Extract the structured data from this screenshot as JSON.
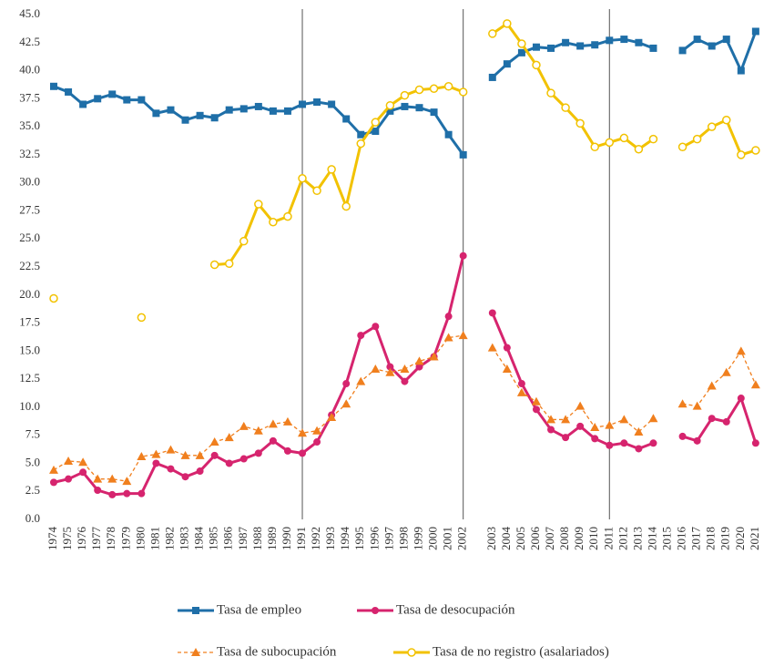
{
  "chart_data": {
    "type": "line",
    "categories": [
      "1974",
      "1975",
      "1976",
      "1977",
      "1978",
      "1979",
      "1980",
      "1981",
      "1982",
      "1983",
      "1984",
      "1985",
      "1986",
      "1987",
      "1988",
      "1989",
      "1990",
      "1991",
      "1992",
      "1993",
      "1994",
      "1995",
      "1996",
      "1997",
      "1998",
      "1999",
      "2000",
      "2001",
      "2002",
      null,
      "2003",
      "2004",
      "2005",
      "2006",
      "2007",
      "2008",
      "2009",
      "2010",
      "2011",
      "2012",
      "2013",
      "2014",
      "2015",
      "2016",
      "2017",
      "2018",
      "2019",
      "2020",
      "2021"
    ],
    "series": [
      {
        "name": "Tasa de empleo",
        "color": "#1f6fa8",
        "marker": "square",
        "dashed": false,
        "values": [
          38.6,
          38.1,
          37.0,
          37.5,
          37.9,
          37.4,
          37.4,
          36.2,
          36.5,
          35.6,
          36.0,
          35.8,
          36.5,
          36.6,
          36.8,
          36.4,
          36.4,
          37.0,
          37.2,
          37.0,
          35.7,
          34.3,
          34.6,
          36.4,
          36.8,
          36.7,
          36.3,
          34.3,
          32.5,
          null,
          39.4,
          40.6,
          41.6,
          42.1,
          42.0,
          42.5,
          42.2,
          42.3,
          42.7,
          42.8,
          42.5,
          42.0,
          null,
          41.8,
          42.8,
          42.2,
          42.8,
          40.0,
          43.5
        ]
      },
      {
        "name": "Tasa de desocupación",
        "color": "#d6246e",
        "marker": "circle",
        "dashed": false,
        "values": [
          3.3,
          3.6,
          4.2,
          2.6,
          2.2,
          2.3,
          2.3,
          5.0,
          4.5,
          3.8,
          4.3,
          5.7,
          5.0,
          5.4,
          5.9,
          7.0,
          6.1,
          5.9,
          6.9,
          9.3,
          12.1,
          16.4,
          17.2,
          13.6,
          12.3,
          13.6,
          14.5,
          18.1,
          23.5,
          null,
          18.4,
          15.3,
          12.1,
          9.8,
          8.0,
          7.3,
          8.3,
          7.2,
          6.6,
          6.8,
          6.3,
          6.8,
          null,
          7.4,
          7.0,
          9.0,
          8.7,
          10.8,
          6.8
        ]
      },
      {
        "name": "Tasa de subocupación",
        "color": "#f07f1e",
        "marker": "triangle",
        "dashed": true,
        "values": [
          4.4,
          5.2,
          5.1,
          3.6,
          3.6,
          3.4,
          5.6,
          5.8,
          6.2,
          5.7,
          5.7,
          6.9,
          7.3,
          8.3,
          7.9,
          8.5,
          8.7,
          7.7,
          7.9,
          9.1,
          10.3,
          12.3,
          13.4,
          13.1,
          13.4,
          14.1,
          14.5,
          16.2,
          16.4,
          null,
          15.3,
          13.4,
          11.3,
          10.5,
          8.9,
          8.9,
          10.1,
          8.2,
          8.4,
          8.9,
          7.8,
          9.0,
          null,
          10.3,
          10.1,
          11.9,
          13.1,
          15.0,
          12.0
        ]
      },
      {
        "name": "Tasa de no registro (asalariados)",
        "color": "#f2c200",
        "marker": "open-circle",
        "dashed": false,
        "values": [
          19.7,
          null,
          null,
          null,
          null,
          null,
          18.0,
          null,
          null,
          null,
          null,
          22.7,
          22.8,
          24.8,
          28.1,
          26.5,
          27.0,
          30.4,
          29.3,
          31.2,
          27.9,
          33.5,
          35.4,
          36.9,
          37.8,
          38.3,
          38.4,
          38.6,
          38.1,
          null,
          43.3,
          44.2,
          42.4,
          40.5,
          38.0,
          36.7,
          35.3,
          33.2,
          33.6,
          34.0,
          33.0,
          33.9,
          null,
          33.2,
          33.9,
          35.0,
          35.6,
          32.5,
          32.9
        ]
      }
    ],
    "vertical_lines": [
      "1991",
      "2002",
      "2011"
    ],
    "ylim": [
      0,
      45
    ],
    "yticks": [
      {
        "value": 0,
        "label": "0.0"
      },
      2.5,
      {
        "value": 5,
        "label": "5.0"
      },
      7.5,
      {
        "value": 10,
        "label": "10.0"
      },
      12.5,
      {
        "value": 15,
        "label": "15.0"
      },
      17.5,
      {
        "value": 20,
        "label": "20.0"
      },
      22.5,
      {
        "value": 25,
        "label": "25.0"
      },
      27.5,
      {
        "value": 30,
        "label": "30.0"
      },
      32.5,
      {
        "value": 35,
        "label": "35.0"
      },
      37.5,
      {
        "value": 40,
        "label": "40.0"
      },
      42.5,
      {
        "value": 45,
        "label": "45.0"
      }
    ],
    "grid": false,
    "legend": "bottom"
  }
}
